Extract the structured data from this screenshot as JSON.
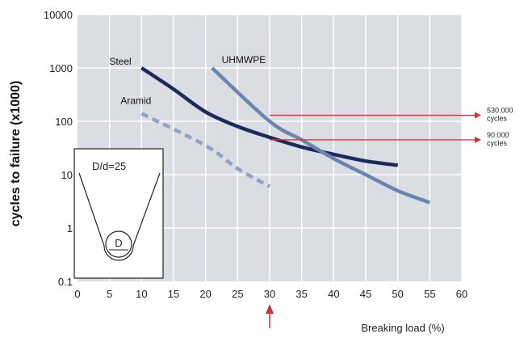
{
  "chart_data": {
    "type": "line",
    "title": "",
    "xlabel": "Breaking load (%)",
    "ylabel": "cycles to failure (x1000)",
    "y_scale": "log",
    "xlim": [
      0,
      60
    ],
    "ylim": [
      0.1,
      10000
    ],
    "x_ticks": [
      "0",
      "5",
      "10",
      "15",
      "20",
      "25",
      "30",
      "35",
      "40",
      "45",
      "50",
      "55",
      "60"
    ],
    "y_ticks": [
      "0.1",
      "1",
      "10",
      "100",
      "1000",
      "10000"
    ],
    "grid": true,
    "series": [
      {
        "name": "Steel",
        "color": "#1c2a5c",
        "style": "solid",
        "points": [
          [
            10,
            1000
          ],
          [
            15,
            400
          ],
          [
            20,
            150
          ],
          [
            25,
            80
          ],
          [
            30,
            50
          ],
          [
            35,
            33
          ],
          [
            40,
            24
          ],
          [
            45,
            18
          ],
          [
            50,
            15
          ]
        ]
      },
      {
        "name": "UHMWPE",
        "color": "#6a86ad",
        "style": "solid",
        "points": [
          [
            21,
            1000
          ],
          [
            30,
            100
          ],
          [
            35,
            45
          ],
          [
            40,
            20
          ],
          [
            45,
            10
          ],
          [
            50,
            5
          ],
          [
            55,
            3
          ]
        ]
      },
      {
        "name": "Aramid",
        "color": "#8fa3c6",
        "style": "dashed",
        "points": [
          [
            10,
            140
          ],
          [
            20,
            35
          ],
          [
            25,
            13
          ],
          [
            30,
            6
          ]
        ]
      }
    ],
    "annotations": [
      {
        "text_lines": [
          "530.000",
          "cycles"
        ],
        "y": 130,
        "from_x": 30,
        "color": "#d0303a"
      },
      {
        "text_lines": [
          "90.000",
          "cycles"
        ],
        "y": 45,
        "from_x": 30,
        "color": "#d0303a"
      }
    ],
    "vertical_marker": {
      "x": 30,
      "color": "#d0303a"
    },
    "inset": {
      "label": "D/d=25",
      "symbol": "D"
    }
  },
  "colors": {
    "plot_bg": "#dadde2",
    "grid": "#ffffff",
    "accent": "#d0303a"
  }
}
